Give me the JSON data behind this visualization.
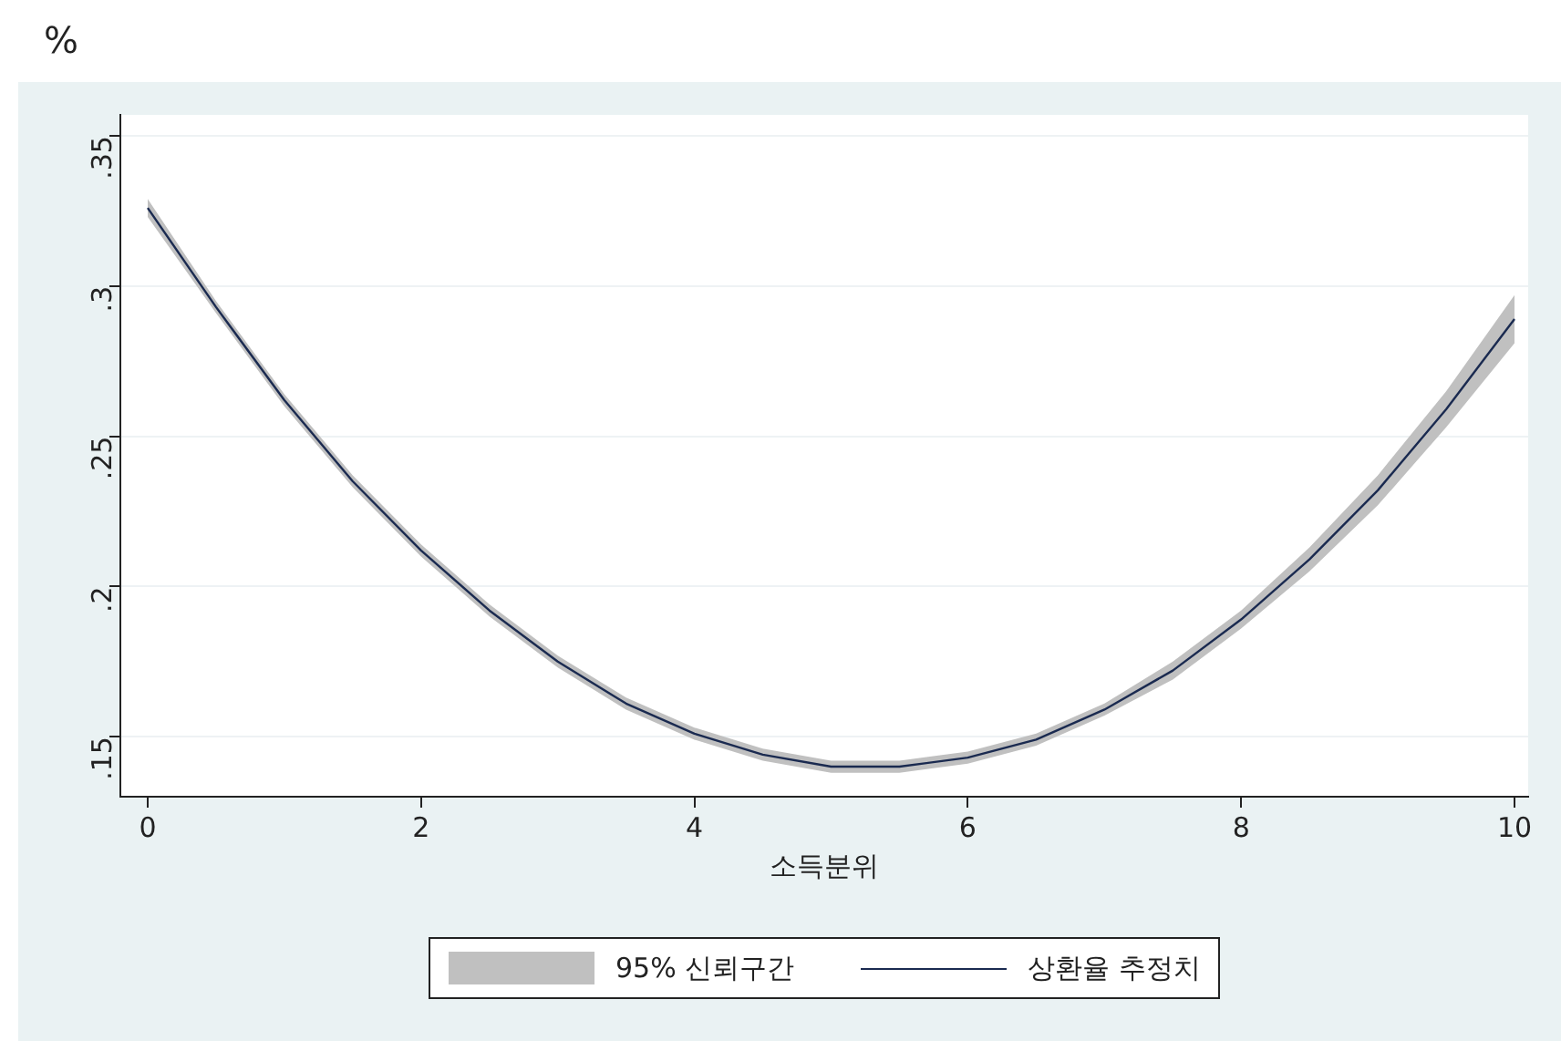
{
  "chart_data": {
    "type": "line",
    "ylabel": "%",
    "xlabel": "소득분위",
    "x": [
      0,
      0.5,
      1,
      1.5,
      2,
      2.5,
      3,
      3.5,
      4,
      4.5,
      5,
      5.5,
      6,
      6.5,
      7,
      7.5,
      8,
      8.5,
      9,
      9.5,
      10
    ],
    "series": [
      {
        "name": "상환율 추정치",
        "color": "#1a2a50",
        "values": [
          0.326,
          0.293,
          0.262,
          0.235,
          0.212,
          0.192,
          0.175,
          0.161,
          0.151,
          0.144,
          0.14,
          0.14,
          0.143,
          0.149,
          0.159,
          0.172,
          0.189,
          0.209,
          0.232,
          0.259,
          0.289
        ],
        "lower": [
          0.323,
          0.291,
          0.26,
          0.233,
          0.21,
          0.19,
          0.173,
          0.159,
          0.149,
          0.142,
          0.138,
          0.138,
          0.141,
          0.147,
          0.157,
          0.169,
          0.186,
          0.205,
          0.227,
          0.253,
          0.281
        ],
        "upper": [
          0.329,
          0.295,
          0.264,
          0.237,
          0.214,
          0.194,
          0.177,
          0.163,
          0.153,
          0.146,
          0.142,
          0.142,
          0.145,
          0.151,
          0.161,
          0.175,
          0.192,
          0.213,
          0.237,
          0.265,
          0.297
        ]
      }
    ],
    "annotations": [
      "95% 신뢰구간"
    ],
    "xlim": [
      -0.2,
      10.1
    ],
    "xticks": [
      0,
      2,
      4,
      6,
      8,
      10
    ],
    "ylim": [
      0.13,
      0.357
    ],
    "yticks": [
      {
        "value": 0.15,
        "label": ".15"
      },
      {
        "value": 0.2,
        "label": ".2"
      },
      {
        "value": 0.25,
        "label": ".25"
      },
      {
        "value": 0.3,
        "label": ".3"
      },
      {
        "value": 0.35,
        "label": ".35"
      }
    ],
    "grid": "y",
    "legend": "bottom",
    "marker": "none",
    "line_style": "solid"
  }
}
